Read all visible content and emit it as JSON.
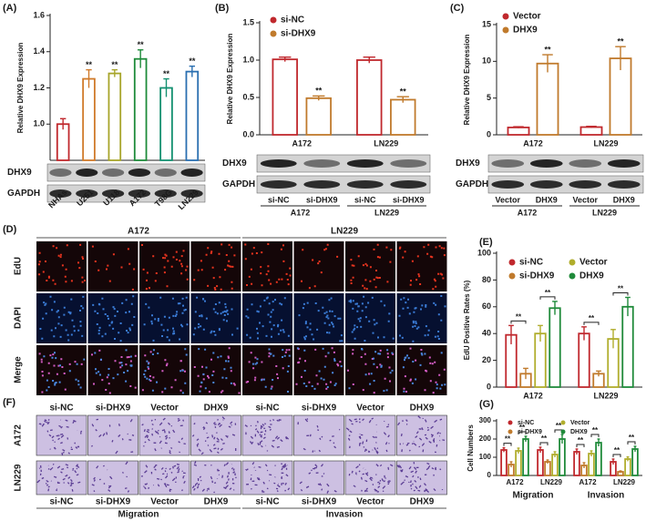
{
  "chart_data": [
    {
      "type": "bar",
      "panel": "(A)",
      "ylabel": "Relative DHX9 Expression",
      "categories": [
        "NHAs",
        "U251",
        "U118",
        "A172",
        "T98G",
        "LN229"
      ],
      "values": [
        1.0,
        1.25,
        1.28,
        1.36,
        1.2,
        1.29
      ],
      "errors": [
        0.03,
        0.05,
        0.02,
        0.05,
        0.05,
        0.03
      ],
      "colors": [
        "#c0282d",
        "#d07a2a",
        "#a7a52a",
        "#1e8b3a",
        "#139070",
        "#2a6fb0"
      ],
      "significance": [
        null,
        "**",
        "**",
        "**",
        "**",
        "**"
      ],
      "ylim": [
        0.8,
        1.6
      ],
      "yticks": [
        {
          "value": 1.0,
          "label": "1.0"
        },
        1.2,
        1.4,
        1.6
      ],
      "blot": {
        "rows": [
          "DHX9",
          "GAPDH"
        ]
      }
    },
    {
      "type": "bar",
      "panel": "(B)",
      "ylabel": "Relative DHX9 Expression",
      "categories": [
        "A172",
        "LN229"
      ],
      "series": [
        {
          "name": "si-NC",
          "color": "#c0282d",
          "values": [
            1.01,
            1.0
          ],
          "errors": [
            0.03,
            0.04
          ]
        },
        {
          "name": "si-DHX9",
          "color": "#c07a2c",
          "values": [
            0.49,
            0.47
          ],
          "errors": [
            0.03,
            0.04
          ],
          "significance": [
            "**",
            "**"
          ]
        }
      ],
      "ylim": [
        0,
        1.5
      ],
      "yticks": [
        {
          "value": 0,
          "label": "0.0"
        },
        0.5,
        {
          "value": 1,
          "label": "1.0"
        },
        1.5
      ],
      "blot": {
        "rows": [
          "DHX9",
          "GAPDH"
        ],
        "lanes": [
          "si-NC",
          "si-DHX9",
          "si-NC",
          "si-DHX9"
        ],
        "lane_groups": [
          "A172",
          "LN229"
        ]
      }
    },
    {
      "type": "bar",
      "panel": "(C)",
      "ylabel": "Relative DHX9 Expression",
      "categories": [
        "A172",
        "LN229"
      ],
      "series": [
        {
          "name": "Vector",
          "color": "#c0282d",
          "values": [
            1.0,
            1.05
          ],
          "errors": [
            0.1,
            0.1
          ]
        },
        {
          "name": "DHX9",
          "color": "#c07a2c",
          "values": [
            9.7,
            10.4
          ],
          "errors": [
            1.2,
            1.6
          ],
          "significance": [
            "**",
            "**"
          ]
        }
      ],
      "ylim": [
        0,
        15
      ],
      "yticks": [
        0,
        5,
        10,
        15
      ],
      "blot": {
        "rows": [
          "DHX9",
          "GAPDH"
        ],
        "lanes": [
          "Vector",
          "DHX9",
          "Vector",
          "DHX9"
        ],
        "lane_groups": [
          "A172",
          "LN229"
        ]
      }
    },
    {
      "type": "bar",
      "panel": "(E)",
      "ylabel": "EdU Positive Rates (%)",
      "categories": [
        "A172",
        "LN229"
      ],
      "series": [
        {
          "name": "si-NC",
          "color": "#c0282d",
          "values": [
            39,
            40
          ],
          "errors": [
            7,
            5
          ]
        },
        {
          "name": "si-DHX9",
          "color": "#c07a2c",
          "values": [
            10,
            10
          ],
          "errors": [
            4,
            2
          ]
        },
        {
          "name": "Vector",
          "color": "#b0ad2c",
          "values": [
            40,
            36
          ],
          "errors": [
            6,
            7
          ]
        },
        {
          "name": "DHX9",
          "color": "#1f8a3a",
          "values": [
            59,
            60
          ],
          "errors": [
            5,
            7
          ]
        }
      ],
      "brackets": [
        "**",
        "**",
        "**",
        "**"
      ],
      "ylim": [
        0,
        100
      ],
      "yticks": [
        0,
        20,
        40,
        60,
        80,
        100
      ]
    },
    {
      "type": "bar",
      "panel": "(G)",
      "ylabel": "Cell Numbers",
      "categories": [
        "A172",
        "LN229",
        "A172",
        "LN229"
      ],
      "groups": [
        "Migration",
        "Invasion"
      ],
      "series": [
        {
          "name": "si-NC",
          "color": "#c0282d",
          "values": [
            140,
            140,
            130,
            75
          ],
          "errors": [
            12,
            15,
            15,
            15
          ]
        },
        {
          "name": "si-DHX9",
          "color": "#c07a2c",
          "values": [
            60,
            75,
            55,
            20
          ],
          "errors": [
            15,
            10,
            15,
            5
          ]
        },
        {
          "name": "Vector",
          "color": "#b0ad2c",
          "values": [
            135,
            115,
            120,
            90
          ],
          "errors": [
            15,
            15,
            15,
            12
          ]
        },
        {
          "name": "DHX9",
          "color": "#1f8a3a",
          "values": [
            200,
            200,
            180,
            145
          ],
          "errors": [
            15,
            25,
            20,
            15
          ]
        }
      ],
      "brackets": [
        "**",
        "**",
        "**",
        "**",
        "**",
        "**",
        "**",
        "**"
      ],
      "ylim": [
        0,
        300
      ],
      "yticks": [
        0,
        100,
        200,
        300
      ]
    }
  ],
  "figure": {
    "D": {
      "panel": "(D)",
      "columns": [
        "A172",
        "LN229"
      ],
      "rows": [
        "EdU",
        "DAPI",
        "Merge"
      ]
    },
    "F": {
      "panel": "(F)",
      "columns": [
        "si-NC",
        "si-DHX9",
        "Vector",
        "DHX9",
        "si-NC",
        "si-DHX9",
        "Vector",
        "DHX9"
      ],
      "rows": [
        "A172",
        "LN229"
      ],
      "bottom_columns": [
        "si-NC",
        "si-DHX9",
        "Vector",
        "DHX9",
        "si-NC",
        "si-DHX9",
        "Vector",
        "DHX9"
      ],
      "groups": [
        "Migration",
        "Invasion"
      ]
    }
  }
}
